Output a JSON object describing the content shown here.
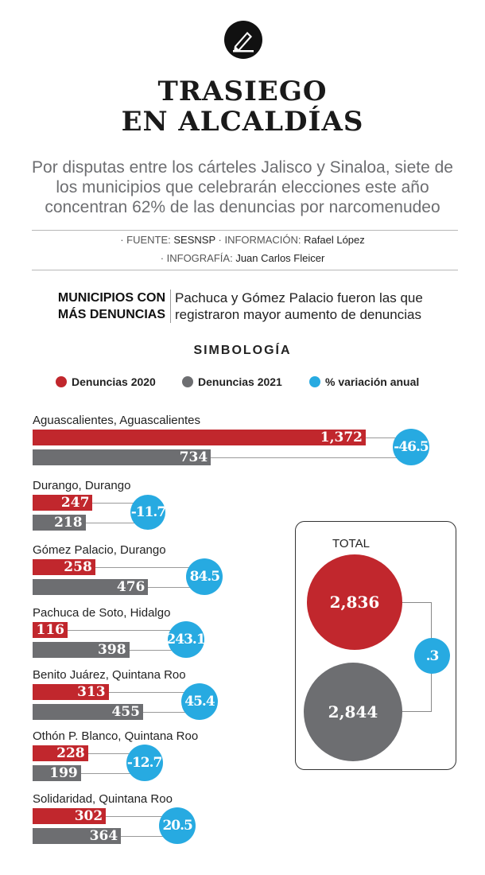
{
  "header": {
    "title_line1": "TRASIEGO",
    "title_line2": "EN ALCALDÍAS",
    "subtitle": "Por disputas entre los cárteles Jalisco y Sinaloa, siete de los municipios que celebrarán elecciones este año concentran 62% de las denuncias por narcomenudeo"
  },
  "credits": {
    "fuente_label": "· FUENTE:",
    "fuente": "SESNSP",
    "info_label": "· INFORMACIÓN:",
    "info": "Rafael López",
    "infografia_label": "· INFOGRAFÍA:",
    "infografia": "Juan Carlos Fleicer"
  },
  "section": {
    "left_line1": "MUNICIPIOS CON",
    "left_line2": "MÁS DENUNCIAS",
    "right_line1": "Pachuca y Gómez Palacio fueron las que",
    "right_line2": "registraron mayor aumento de denuncias"
  },
  "legend": {
    "title": "SIMBOLOGÍA",
    "items": [
      {
        "label": "Denuncias 2020",
        "color": "#c1272d"
      },
      {
        "label": "Denuncias 2021",
        "color": "#6d6e71"
      },
      {
        "label": "% variación anual",
        "color": "#27aae1"
      }
    ]
  },
  "colors": {
    "red": "#c1272d",
    "gray": "#6d6e71",
    "blue": "#27aae1"
  },
  "chart_data": {
    "type": "bar",
    "orientation": "horizontal",
    "categories": [
      "Aguascalientes, Aguascalientes",
      "Durango, Durango",
      "Gómez Palacio, Durango",
      "Pachuca de Soto, Hidalgo",
      "Benito Juárez, Quintana Roo",
      "Othón P. Blanco, Quintana Roo",
      "Solidaridad, Quintana Roo"
    ],
    "series": [
      {
        "name": "Denuncias 2020",
        "values": [
          1372,
          247,
          258,
          116,
          313,
          228,
          302
        ],
        "labels": [
          "1,372",
          "247",
          "258",
          "116",
          "313",
          "228",
          "302"
        ]
      },
      {
        "name": "Denuncias 2021",
        "values": [
          734,
          218,
          476,
          398,
          455,
          199,
          364
        ],
        "labels": [
          "734",
          "218",
          "476",
          "398",
          "455",
          "199",
          "364"
        ]
      },
      {
        "name": "% variación anual",
        "values": [
          -46.5,
          -11.7,
          84.5,
          243.1,
          45.4,
          -12.7,
          20.5
        ],
        "labels": [
          "-46.5",
          "-11.7",
          "84.5",
          "243.1",
          "45.4",
          "-12.7",
          "20.5"
        ]
      }
    ],
    "total": {
      "label": "TOTAL",
      "value_2020": 2836,
      "label_2020": "2,836",
      "value_2021": 2844,
      "label_2021": "2,844",
      "variation": 0.3,
      "variation_label": ".3"
    }
  }
}
